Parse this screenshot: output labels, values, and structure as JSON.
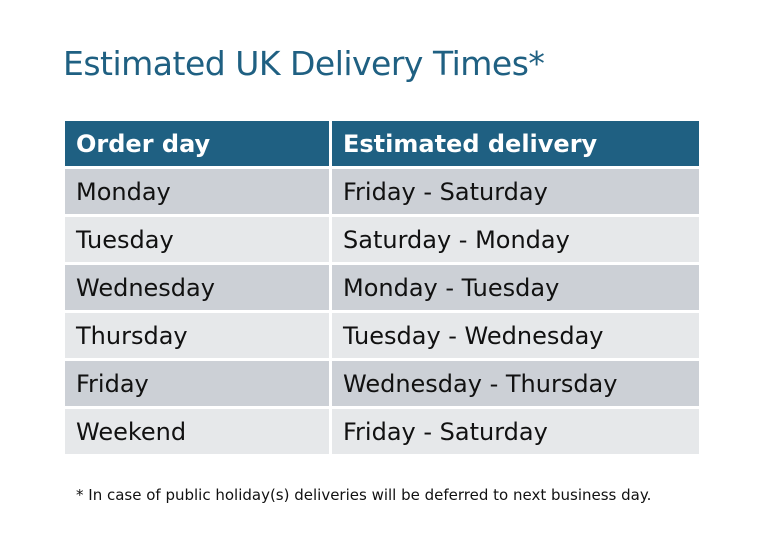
{
  "title": "Estimated UK Delivery Times*",
  "table": {
    "headers": [
      "Order day",
      "Estimated delivery"
    ],
    "rows": [
      [
        "Monday",
        "Friday - Saturday"
      ],
      [
        "Tuesday",
        "Saturday - Monday"
      ],
      [
        "Wednesday",
        "Monday - Tuesday"
      ],
      [
        "Thursday",
        "Tuesday - Wednesday"
      ],
      [
        "Friday",
        "Wednesday - Thursday"
      ],
      [
        "Weekend",
        "Friday - Saturday"
      ]
    ]
  },
  "footnote": "* In case of public holiday(s) deliveries will be deferred to next business day.",
  "colors": {
    "header": "#1f6082",
    "row_dark": "#ccd0d6",
    "row_light": "#e6e8ea"
  }
}
